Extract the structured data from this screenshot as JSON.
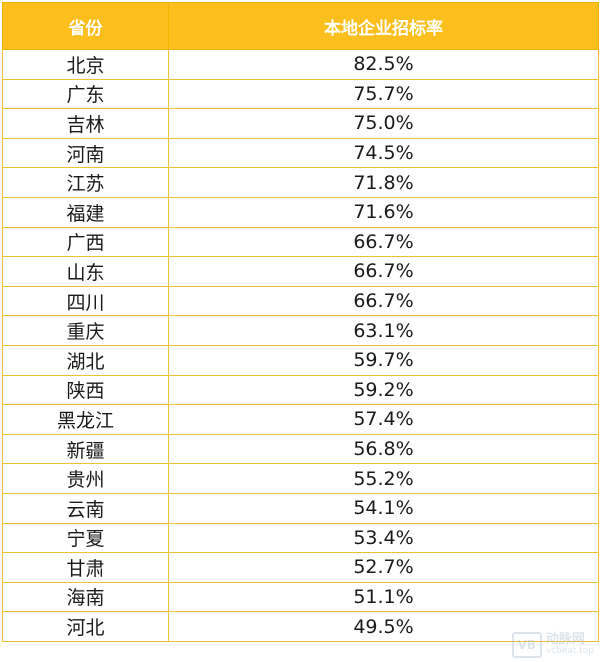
{
  "table": {
    "headers": [
      "省份",
      "本地企业招标率"
    ],
    "rows": [
      [
        "北京",
        "82.5%"
      ],
      [
        "广东",
        "75.7%"
      ],
      [
        "吉林",
        "75.0%"
      ],
      [
        "河南",
        "74.5%"
      ],
      [
        "江苏",
        "71.8%"
      ],
      [
        "福建",
        "71.6%"
      ],
      [
        "广西",
        "66.7%"
      ],
      [
        "山东",
        "66.7%"
      ],
      [
        "四川",
        "66.7%"
      ],
      [
        "重庆",
        "63.1%"
      ],
      [
        "湖北",
        "59.7%"
      ],
      [
        "陕西",
        "59.2%"
      ],
      [
        "黑龙江",
        "57.4%"
      ],
      [
        "新疆",
        "56.8%"
      ],
      [
        "贵州",
        "55.2%"
      ],
      [
        "云南",
        "54.1%"
      ],
      [
        "宁夏",
        "53.4%"
      ],
      [
        "甘肃",
        "52.7%"
      ],
      [
        "海南",
        "51.1%"
      ],
      [
        "河北",
        "49.5%"
      ]
    ]
  },
  "watermark": {
    "logo": "VB",
    "name": "动脉网",
    "url": "vcbeat.top"
  },
  "colors": {
    "header_bg": "#fcbf1d",
    "header_text": "#ffffff",
    "border": "#f3c232"
  }
}
